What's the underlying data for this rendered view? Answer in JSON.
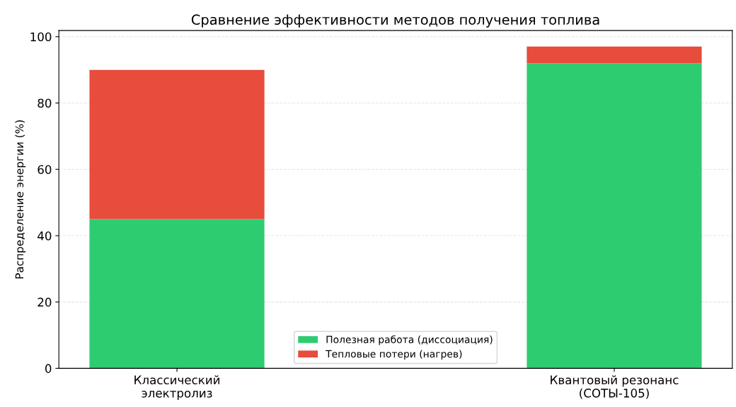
{
  "chart_data": {
    "type": "bar",
    "title": "Сравнение эффективности методов получения топлива",
    "ylabel": "Распределение энергии (%)",
    "categories": [
      "Классический\nэлектролиз",
      "Квантовый резонанс\n(СОТЫ-105)"
    ],
    "series": [
      {
        "name": "Полезная работа (диссоциация)",
        "color": "#2ecc71",
        "values": [
          45,
          92
        ]
      },
      {
        "name": "Тепловые потери (нагрев)",
        "color": "#e74c3c",
        "values": [
          45,
          5
        ]
      }
    ],
    "stacked": true,
    "ylim": [
      0,
      101.85
    ],
    "yticks": [
      0,
      20,
      40,
      60,
      80,
      100
    ],
    "grid": "y",
    "legend": "bottom"
  }
}
